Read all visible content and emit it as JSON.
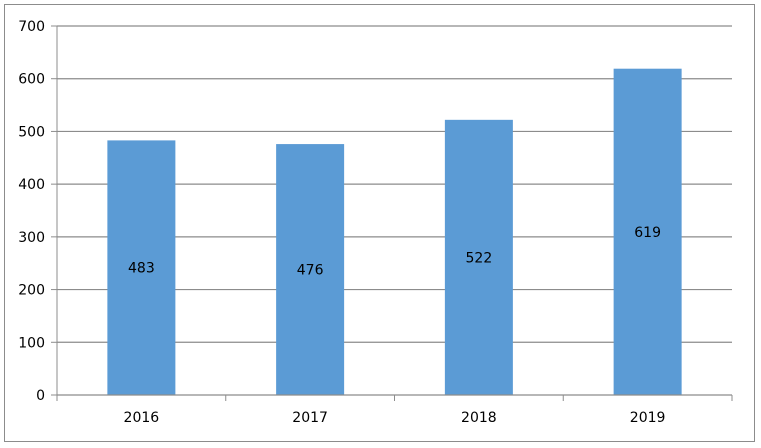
{
  "chart_data": {
    "type": "bar",
    "categories": [
      "2016",
      "2017",
      "2018",
      "2019"
    ],
    "values": [
      483,
      476,
      522,
      619
    ],
    "data_labels": [
      "483",
      "476",
      "522",
      "619"
    ],
    "title": "",
    "xlabel": "",
    "ylabel": "",
    "ylim": [
      0,
      700
    ],
    "y_ticks": [
      0,
      100,
      200,
      300,
      400,
      500,
      600,
      700
    ],
    "y_tick_labels": [
      "0",
      "100",
      "200",
      "300",
      "400",
      "500",
      "600",
      "700"
    ],
    "grid": true,
    "legend": "none",
    "bar_color": "#5b9bd5",
    "grid_color": "#8c8c8c",
    "border_color": "#8c8c8c"
  }
}
